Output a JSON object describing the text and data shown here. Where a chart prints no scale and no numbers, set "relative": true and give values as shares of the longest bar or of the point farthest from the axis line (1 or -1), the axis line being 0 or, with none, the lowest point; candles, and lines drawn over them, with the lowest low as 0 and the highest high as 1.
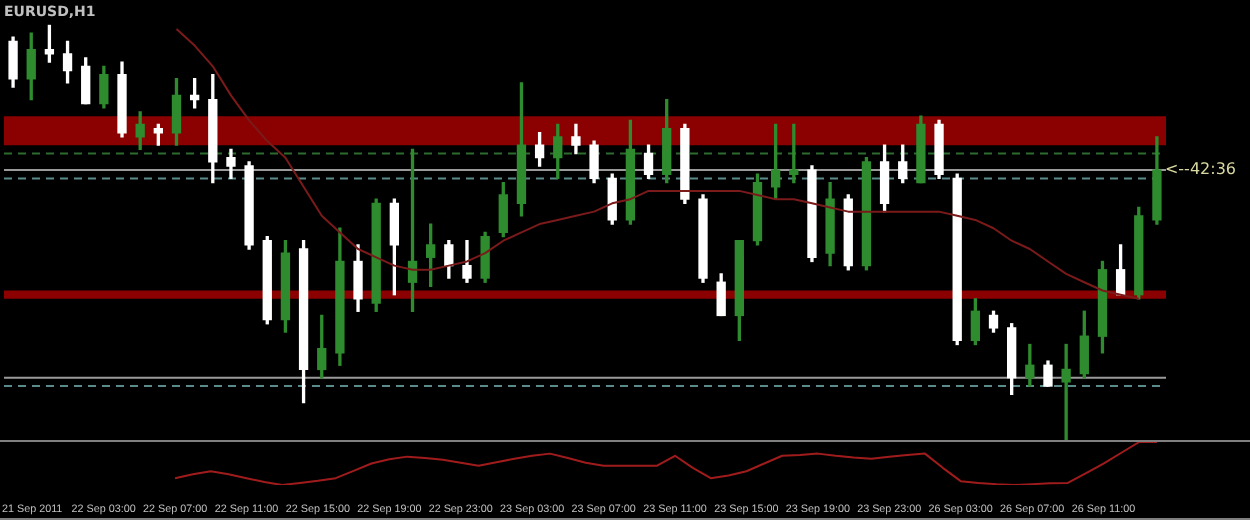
{
  "chart_data": [
    {
      "type": "candlestick",
      "title": "EURUSD,H1",
      "relative": true,
      "tick_labels": false,
      "grid": false,
      "legend": false,
      "categories": [
        null,
        null,
        null,
        null,
        null,
        null,
        null,
        null,
        null,
        null,
        null,
        null,
        null,
        null,
        null,
        null,
        null,
        null,
        null,
        null,
        null,
        null,
        null,
        null,
        null,
        null,
        null,
        null,
        null,
        null,
        null,
        null,
        null,
        null,
        null,
        null,
        null,
        null,
        null,
        null,
        null,
        null,
        null,
        null,
        null,
        null,
        null,
        null,
        null,
        null,
        null,
        null,
        null,
        null,
        null,
        null,
        null,
        null,
        null,
        null,
        null,
        null,
        null,
        null
      ],
      "ohlc": [
        [
          0.96,
          0.97,
          0.85,
          0.87
        ],
        [
          0.87,
          0.98,
          0.82,
          0.94
        ],
        [
          0.94,
          1.0,
          0.91,
          0.93
        ],
        [
          0.93,
          0.96,
          0.86,
          0.89
        ],
        [
          0.9,
          0.92,
          0.81,
          0.81
        ],
        [
          0.81,
          0.9,
          0.8,
          0.88
        ],
        [
          0.88,
          0.91,
          0.73,
          0.74
        ],
        [
          0.73,
          0.79,
          0.7,
          0.76
        ],
        [
          0.75,
          0.76,
          0.71,
          0.74
        ],
        [
          0.74,
          0.87,
          0.71,
          0.83
        ],
        [
          0.83,
          0.87,
          0.8,
          0.82
        ],
        [
          0.82,
          0.88,
          0.62,
          0.67
        ],
        [
          0.68,
          0.7,
          0.63,
          0.66
        ],
        [
          0.66,
          0.67,
          0.46,
          0.47
        ],
        [
          0.48,
          0.49,
          0.28,
          0.29
        ],
        [
          0.29,
          0.48,
          0.26,
          0.45
        ],
        [
          0.46,
          0.48,
          0.09,
          0.17
        ],
        [
          0.17,
          0.3,
          0.15,
          0.22
        ],
        [
          0.21,
          0.51,
          0.18,
          0.43
        ],
        [
          0.43,
          0.47,
          0.31,
          0.34
        ],
        [
          0.33,
          0.58,
          0.31,
          0.57
        ],
        [
          0.57,
          0.58,
          0.35,
          0.47
        ],
        [
          0.38,
          0.7,
          0.31,
          0.43
        ],
        [
          0.44,
          0.52,
          0.37,
          0.47
        ],
        [
          0.47,
          0.48,
          0.39,
          0.42
        ],
        [
          0.42,
          0.48,
          0.38,
          0.39
        ],
        [
          0.39,
          0.5,
          0.38,
          0.49
        ],
        [
          0.5,
          0.62,
          0.49,
          0.59
        ],
        [
          0.57,
          0.86,
          0.54,
          0.71
        ],
        [
          0.71,
          0.74,
          0.66,
          0.68
        ],
        [
          0.68,
          0.76,
          0.63,
          0.73
        ],
        [
          0.73,
          0.76,
          0.69,
          0.71
        ],
        [
          0.71,
          0.72,
          0.62,
          0.63
        ],
        [
          0.63,
          0.64,
          0.52,
          0.53
        ],
        [
          0.53,
          0.77,
          0.52,
          0.7
        ],
        [
          0.69,
          0.71,
          0.63,
          0.64
        ],
        [
          0.64,
          0.82,
          0.62,
          0.75
        ],
        [
          0.75,
          0.76,
          0.57,
          0.58
        ],
        [
          0.58,
          0.59,
          0.38,
          0.39
        ],
        [
          0.38,
          0.4,
          0.3,
          0.3
        ],
        [
          0.3,
          0.48,
          0.24,
          0.48
        ],
        [
          0.48,
          0.64,
          0.47,
          0.62
        ],
        [
          0.61,
          0.76,
          0.58,
          0.65
        ],
        [
          0.64,
          0.76,
          0.62,
          0.65
        ],
        [
          0.65,
          0.66,
          0.43,
          0.44
        ],
        [
          0.45,
          0.62,
          0.42,
          0.58
        ],
        [
          0.58,
          0.59,
          0.41,
          0.42
        ],
        [
          0.42,
          0.68,
          0.41,
          0.67
        ],
        [
          0.67,
          0.71,
          0.55,
          0.57
        ],
        [
          0.67,
          0.71,
          0.62,
          0.63
        ],
        [
          0.62,
          0.78,
          0.62,
          0.76
        ],
        [
          0.76,
          0.77,
          0.63,
          0.64
        ],
        [
          0.63,
          0.64,
          0.23,
          0.24
        ],
        [
          0.24,
          0.34,
          0.23,
          0.31
        ],
        [
          0.3,
          0.31,
          0.26,
          0.27
        ],
        [
          0.27,
          0.28,
          0.11,
          0.15
        ],
        [
          0.15,
          0.23,
          0.13,
          0.18
        ],
        [
          0.18,
          0.19,
          0.13,
          0.13
        ],
        [
          0.14,
          0.23,
          0.0,
          0.17
        ],
        [
          0.16,
          0.31,
          0.15,
          0.25
        ],
        [
          0.25,
          0.43,
          0.21,
          0.41
        ],
        [
          0.41,
          0.47,
          0.35,
          0.35
        ],
        [
          0.35,
          0.56,
          0.34,
          0.54
        ],
        [
          0.53,
          0.73,
          0.52,
          0.65
        ]
      ],
      "colors": [
        "#ffffff",
        "#2e8b2e",
        "#ffffff",
        "#ffffff",
        "#ffffff",
        "#2e8b2e",
        "#ffffff",
        "#2e8b2e",
        "#ffffff",
        "#2e8b2e",
        "#ffffff",
        "#ffffff",
        "#ffffff",
        "#ffffff",
        "#ffffff",
        "#2e8b2e",
        "#ffffff",
        "#2e8b2e",
        "#2e8b2e",
        "#ffffff",
        "#2e8b2e",
        "#ffffff",
        "#2e8b2e",
        "#2e8b2e",
        "#ffffff",
        "#ffffff",
        "#2e8b2e",
        "#2e8b2e",
        "#2e8b2e",
        "#ffffff",
        "#2e8b2e",
        "#ffffff",
        "#ffffff",
        "#ffffff",
        "#2e8b2e",
        "#ffffff",
        "#2e8b2e",
        "#ffffff",
        "#ffffff",
        "#ffffff",
        "#2e8b2e",
        "#2e8b2e",
        "#2e8b2e",
        "#2e8b2e",
        "#ffffff",
        "#2e8b2e",
        "#ffffff",
        "#2e8b2e",
        "#ffffff",
        "#ffffff",
        "#2e8b2e",
        "#ffffff",
        "#ffffff",
        "#2e8b2e",
        "#ffffff",
        "#ffffff",
        "#2e8b2e",
        "#ffffff",
        "#2e8b2e",
        "#2e8b2e",
        "#2e8b2e",
        "#ffffff",
        "#2e8b2e",
        "#2e8b2e"
      ],
      "series": [
        {
          "type": "line",
          "color": "#7b1a1a",
          "values": [
            null,
            null,
            null,
            null,
            null,
            null,
            null,
            null,
            null,
            0.99,
            0.95,
            0.9,
            0.83,
            0.77,
            0.72,
            0.68,
            0.61,
            0.54,
            0.5,
            0.46,
            0.44,
            0.42,
            0.41,
            0.41,
            0.42,
            0.43,
            0.45,
            0.48,
            0.5,
            0.52,
            0.53,
            0.54,
            0.55,
            0.57,
            0.58,
            0.6,
            0.6,
            0.6,
            0.6,
            0.6,
            0.6,
            0.59,
            0.58,
            0.58,
            0.57,
            0.56,
            0.55,
            0.55,
            0.55,
            0.55,
            0.55,
            0.55,
            0.54,
            0.53,
            0.51,
            0.48,
            0.46,
            0.43,
            0.4,
            0.38,
            0.36,
            0.35,
            0.34,
            null
          ]
        }
      ],
      "ref_lines": [
        {
          "axis": "y",
          "value": 0.69,
          "color": "#2e6b2e",
          "line_style": "dashed"
        },
        {
          "axis": "y",
          "value": 0.65,
          "color": "#9a9a9a",
          "line_style": "solid"
        },
        {
          "axis": "y",
          "value": 0.63,
          "color": "#5a8a8a",
          "line_style": "dashed"
        },
        {
          "axis": "y",
          "value": 0.15,
          "color": "#9a9a9a",
          "line_style": "solid"
        },
        {
          "axis": "y",
          "value": 0.13,
          "color": "#5a8a8a",
          "line_style": "dashed"
        }
      ],
      "bands": [
        {
          "axis": "y",
          "from": 0.71,
          "to": 0.78,
          "color": "#8b0000"
        },
        {
          "axis": "y",
          "from": 0.34,
          "to": 0.36,
          "color": "#8b0000"
        }
      ],
      "annotations": [
        "<--42:36"
      ]
    },
    {
      "type": "line",
      "relative": true,
      "tick_labels": "x",
      "grid": false,
      "legend": false,
      "categories": [
        "21 Sep 2011",
        null,
        null,
        null,
        "22 Sep 03:00",
        null,
        null,
        null,
        "22 Sep 07:00",
        null,
        null,
        null,
        "22 Sep 11:00",
        null,
        null,
        null,
        "22 Sep 15:00",
        null,
        null,
        null,
        "22 Sep 19:00",
        null,
        null,
        null,
        "22 Sep 23:00",
        null,
        null,
        null,
        "23 Sep 03:00",
        null,
        null,
        null,
        "23 Sep 07:00",
        null,
        null,
        null,
        "23 Sep 11:00",
        null,
        null,
        null,
        "23 Sep 15:00",
        null,
        null,
        null,
        "23 Sep 19:00",
        null,
        null,
        null,
        "23 Sep 23:00",
        null,
        null,
        null,
        "26 Sep 03:00",
        null,
        null,
        null,
        "26 Sep 07:00",
        null,
        null,
        null,
        "26 Sep 11:00",
        null,
        null,
        null
      ],
      "series": [
        {
          "color": "#a01c1c",
          "values": [
            null,
            null,
            null,
            null,
            null,
            null,
            null,
            null,
            0.16,
            0.25,
            0.32,
            0.25,
            0.16,
            0.07,
            0,
            0.05,
            0.1,
            0.16,
            0.33,
            0.5,
            0.6,
            0.66,
            0.63,
            0.59,
            0.52,
            0.45,
            0.53,
            0.61,
            0.68,
            0.73,
            0.63,
            0.52,
            0.45,
            0.45,
            0.45,
            0.45,
            0.68,
            0.4,
            0.16,
            0.22,
            0.32,
            0.5,
            0.68,
            0.7,
            0.73,
            0.68,
            0.64,
            0.61,
            0.66,
            0.7,
            0.73,
            0.4,
            0.09,
            0.05,
            0.02,
            0,
            0.02,
            0.04,
            0.05,
            0.27,
            0.5,
            0.75,
            1,
            1
          ]
        }
      ]
    }
  ]
}
